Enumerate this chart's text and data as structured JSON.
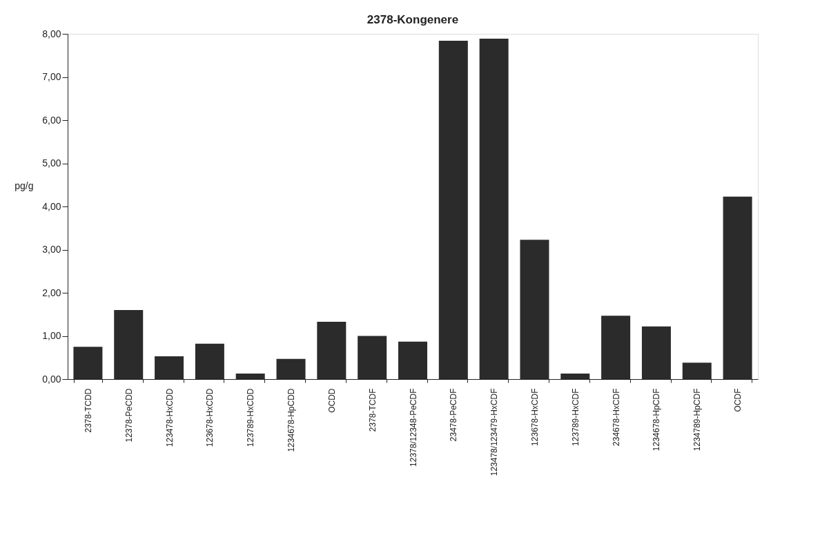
{
  "chart_data": {
    "type": "bar",
    "title": "2378-Kongenere",
    "ylabel": "pg/g",
    "categories": [
      "2378-TCDD",
      "12378-PeCDD",
      "123478-HxCDD",
      "123678-HxCDD",
      "123789-HxCDD",
      "1234678-HpCDD",
      "OCDD",
      "2378-TCDF",
      "12378/12348-PeCDF",
      "23478-PeCDF",
      "123478/123479-HxCDF",
      "123678-HxCDF",
      "123789-HxCDF",
      "234678-HxCDF",
      "1234678-HpCDF",
      "1234789-HpCDF",
      "OCDF"
    ],
    "values": [
      0.75,
      1.6,
      0.53,
      0.82,
      0.13,
      0.47,
      1.33,
      1.0,
      0.87,
      7.84,
      7.89,
      3.23,
      0.13,
      1.47,
      1.22,
      0.38,
      4.23
    ],
    "color": "#2b2b2b",
    "ylim": [
      0,
      8
    ],
    "yticks": [
      {
        "value": 0,
        "label": "0,00"
      },
      {
        "value": 1,
        "label": "1,00"
      },
      {
        "value": 2,
        "label": "2,00"
      },
      {
        "value": 3,
        "label": "3,00"
      },
      {
        "value": 4,
        "label": "4,00"
      },
      {
        "value": 5,
        "label": "5,00"
      },
      {
        "value": 6,
        "label": "6,00"
      },
      {
        "value": 7,
        "label": "7,00"
      },
      {
        "value": 8,
        "label": "8,00"
      }
    ],
    "grid": false
  }
}
